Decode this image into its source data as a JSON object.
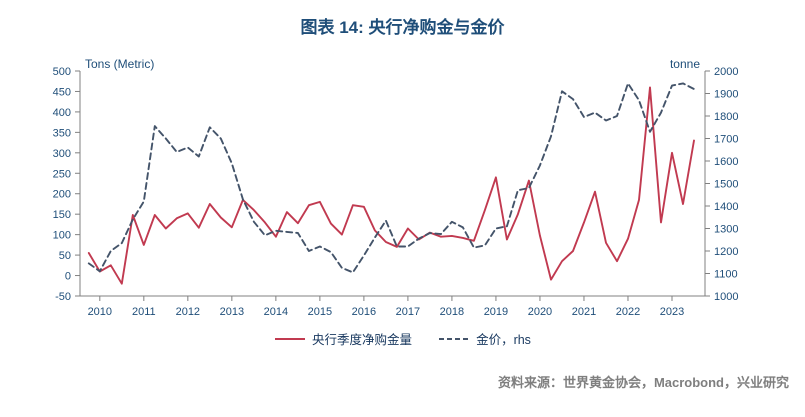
{
  "title": "图表 14: 央行净购金与金价",
  "source": "资料来源：世界黄金协会，Macrobond，兴业研究",
  "colors": {
    "title": "#1f4e79",
    "tick_text": "#1f4e79",
    "axis_line": "#808080",
    "purchases_line": "#c13a50",
    "gold_line": "#44546a",
    "source_text": "#7f7f7f"
  },
  "chart_data": {
    "type": "line",
    "title": "图表 14: 央行净购金与金价",
    "legend_position": "bottom",
    "grid": false,
    "left_axis": {
      "label": "Tons (Metric)",
      "min": -50,
      "max": 500,
      "ticks": [
        -50,
        0,
        50,
        100,
        150,
        200,
        250,
        300,
        350,
        400,
        450,
        500
      ]
    },
    "right_axis": {
      "label": "tonne",
      "min": 1000,
      "max": 2000,
      "ticks": [
        1000,
        1100,
        1200,
        1300,
        1400,
        1500,
        1600,
        1700,
        1800,
        1900,
        2000
      ]
    },
    "x_axis": {
      "min": 2009.55,
      "max": 2023.75,
      "ticks": [
        2010,
        2011,
        2012,
        2013,
        2014,
        2015,
        2016,
        2017,
        2018,
        2019,
        2020,
        2021,
        2022,
        2023
      ]
    },
    "x": [
      2009.75,
      2010,
      2010.25,
      2010.5,
      2010.75,
      2011,
      2011.25,
      2011.5,
      2011.75,
      2012,
      2012.25,
      2012.5,
      2012.75,
      2013,
      2013.25,
      2013.5,
      2013.75,
      2014,
      2014.25,
      2014.5,
      2014.75,
      2015,
      2015.25,
      2015.5,
      2015.75,
      2016,
      2016.25,
      2016.5,
      2016.75,
      2017,
      2017.25,
      2017.5,
      2017.75,
      2018,
      2018.25,
      2018.5,
      2018.75,
      2019,
      2019.25,
      2019.5,
      2019.75,
      2020,
      2020.25,
      2020.5,
      2020.75,
      2021,
      2021.25,
      2021.5,
      2021.75,
      2022,
      2022.25,
      2022.5,
      2022.75,
      2023,
      2023.25,
      2023.5
    ],
    "series": [
      {
        "name": "央行季度净购金量",
        "axis": "left",
        "style": "solid",
        "color": "#c13a50",
        "values": [
          55,
          10,
          25,
          -20,
          148,
          75,
          148,
          115,
          140,
          152,
          117,
          175,
          142,
          118,
          185,
          160,
          130,
          95,
          155,
          128,
          172,
          180,
          127,
          100,
          172,
          168,
          110,
          82,
          70,
          115,
          88,
          105,
          95,
          97,
          92,
          85,
          160,
          240,
          88,
          150,
          232,
          98,
          -10,
          35,
          60,
          130,
          205,
          80,
          35,
          90,
          185,
          460,
          130,
          300,
          175,
          330
        ]
      },
      {
        "name": "金价，rhs",
        "axis": "right",
        "style": "dashed",
        "color": "#44546a",
        "values": [
          1145,
          1110,
          1200,
          1235,
          1340,
          1420,
          1755,
          1700,
          1640,
          1660,
          1620,
          1750,
          1700,
          1590,
          1430,
          1330,
          1270,
          1290,
          1285,
          1280,
          1200,
          1220,
          1195,
          1125,
          1105,
          1180,
          1260,
          1335,
          1220,
          1220,
          1255,
          1280,
          1275,
          1330,
          1305,
          1215,
          1225,
          1300,
          1310,
          1470,
          1480,
          1580,
          1710,
          1910,
          1875,
          1795,
          1815,
          1780,
          1800,
          1945,
          1870,
          1730,
          1815,
          1935,
          1945,
          1920
        ]
      }
    ]
  }
}
